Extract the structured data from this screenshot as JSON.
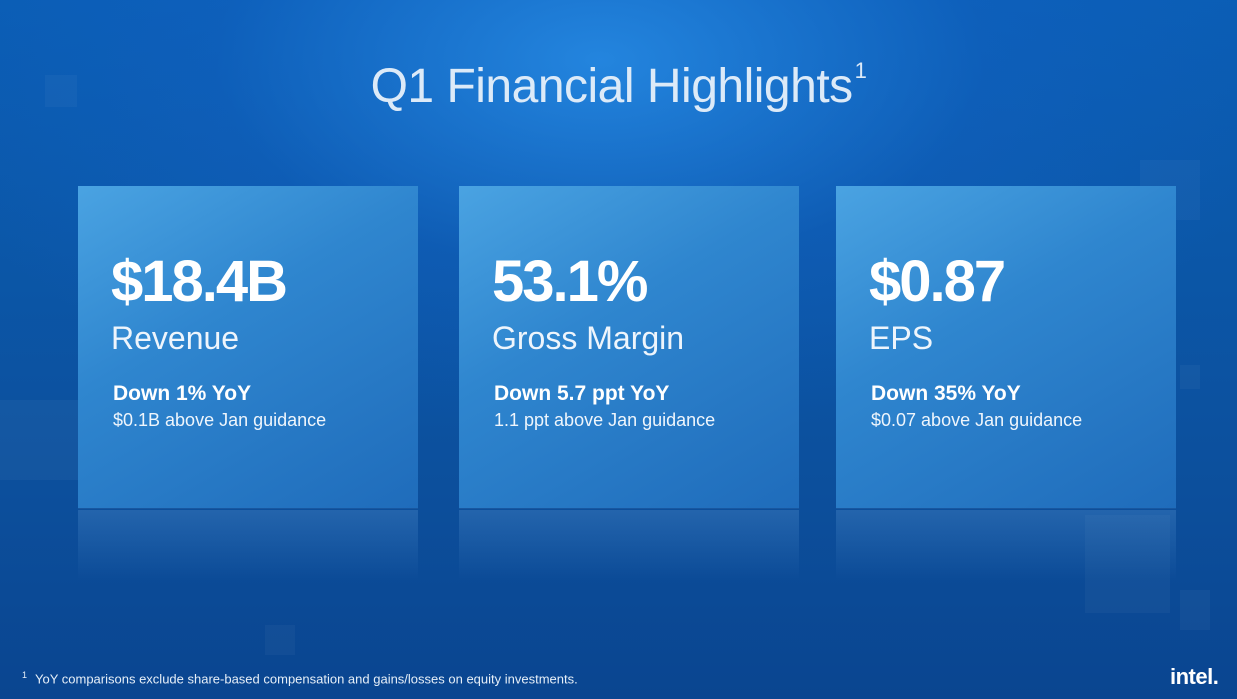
{
  "title": {
    "text": "Q1 Financial Highlights",
    "superscript": "1"
  },
  "cards": [
    {
      "value": "$18.4B",
      "label": "Revenue",
      "change": "Down 1% YoY",
      "note": "$0.1B above Jan guidance"
    },
    {
      "value": "53.1%",
      "label": "Gross Margin",
      "change": "Down 5.7 ppt YoY",
      "note": "1.1 ppt above Jan guidance"
    },
    {
      "value": "$0.87",
      "label": "EPS",
      "change": "Down 35% YoY",
      "note": "$0.07 above Jan guidance"
    }
  ],
  "footnote": {
    "marker": "1",
    "text": "YoY comparisons exclude share-based compensation and gains/losses on equity investments."
  },
  "logo": {
    "text": "intel."
  },
  "colors": {
    "background": "#0b57a8",
    "card": "#2f86cf",
    "text": "#ffffff"
  }
}
